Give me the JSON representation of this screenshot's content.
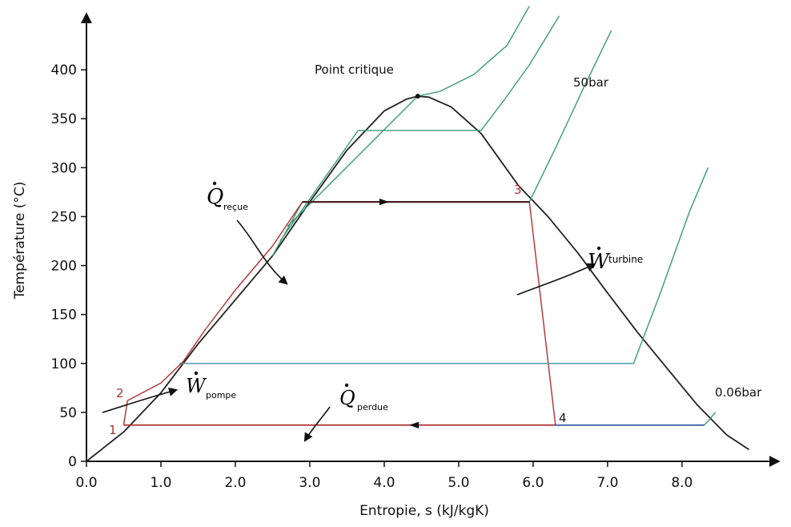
{
  "chart_data": {
    "type": "line",
    "title": "",
    "xlabel": "Entropie, s (kJ/kgK)",
    "ylabel": "Température (°C)",
    "xlim": [
      0.0,
      9.0
    ],
    "ylim": [
      0,
      450
    ],
    "x_ticks": [
      0.0,
      1.0,
      2.0,
      3.0,
      4.0,
      5.0,
      6.0,
      7.0,
      8.0
    ],
    "x_tick_labels": [
      "0.0",
      "1.0",
      "2.0",
      "3.0",
      "4.0",
      "5.0",
      "6.0",
      "7.0",
      "8.0"
    ],
    "y_ticks": [
      0,
      50,
      100,
      150,
      200,
      250,
      300,
      350,
      400
    ],
    "y_tick_labels": [
      "0",
      "50",
      "100",
      "150",
      "200",
      "250",
      "300",
      "350",
      "400"
    ],
    "grid": false,
    "colors": {
      "saturation_dome": "#222222",
      "isobar": "#3a9a74",
      "cycle": "#b03030",
      "heat_line": "#a02828",
      "wet_isotherm": "#4a9aa8",
      "low_isobar_wet": "#2850a0",
      "arrow": "#111111"
    },
    "series": [
      {
        "role": "saturation_dome",
        "x": [
          0.0,
          0.5,
          1.0,
          1.5,
          2.0,
          2.5,
          3.0,
          3.5,
          4.0,
          4.3,
          4.45,
          4.6,
          4.9,
          5.3,
          5.8,
          6.2,
          6.6,
          7.0,
          7.4,
          7.8,
          8.2,
          8.6,
          8.9
        ],
        "y": [
          0,
          30,
          70,
          120,
          165,
          210,
          265,
          318,
          358,
          370,
          373,
          372,
          362,
          335,
          282,
          250,
          213,
          172,
          132,
          95,
          58,
          27,
          12
        ]
      },
      {
        "role": "isobar",
        "name": "50bar",
        "x": [
          2.5,
          2.9,
          5.95,
          6.3,
          6.7,
          7.05
        ],
        "y": [
          210,
          265,
          265,
          320,
          385,
          440
        ]
      },
      {
        "role": "isobar",
        "x": [
          2.6,
          3.65,
          5.3,
          5.6,
          5.95,
          6.35
        ],
        "y": [
          225,
          338,
          338,
          368,
          405,
          455
        ]
      },
      {
        "role": "isobar",
        "x": [
          2.7,
          4.45,
          4.75,
          5.2,
          5.65,
          5.95
        ],
        "y": [
          240,
          373,
          378,
          395,
          425,
          465
        ]
      },
      {
        "role": "isobar",
        "x": [
          1.25,
          7.35,
          7.7,
          8.1,
          8.35
        ],
        "y": [
          100,
          100,
          170,
          255,
          300
        ]
      },
      {
        "role": "isobar",
        "name": "0.06bar",
        "x": [
          0.5,
          8.3,
          8.45
        ],
        "y": [
          37,
          37,
          50
        ]
      },
      {
        "role": "cycle",
        "name": "1-2-3-4",
        "x": [
          0.5,
          0.55,
          1.0,
          1.3,
          1.6,
          2.0,
          2.5,
          2.9,
          5.95,
          6.3,
          0.5
        ],
        "y": [
          37,
          62,
          80,
          102,
          135,
          175,
          220,
          265,
          265,
          37,
          37
        ]
      }
    ],
    "points": [
      {
        "label": "1",
        "x": 0.5,
        "y": 37
      },
      {
        "label": "2",
        "x": 0.55,
        "y": 62
      },
      {
        "label": "3",
        "x": 5.95,
        "y": 265
      },
      {
        "label": "4",
        "x": 6.3,
        "y": 37
      }
    ],
    "critical_point": {
      "label": "Point critique",
      "x": 4.45,
      "y": 373
    },
    "isobar_labels": [
      "50bar",
      "0.06bar"
    ],
    "annotations": {
      "q_recue": {
        "symbol": "Q",
        "subscript": "reçue"
      },
      "w_turbine": {
        "symbol": "W",
        "subscript": "turbine"
      },
      "w_pompe": {
        "symbol": "W",
        "subscript": "pompe"
      },
      "q_perdue": {
        "symbol": "Q",
        "subscript": "perdue"
      }
    }
  }
}
